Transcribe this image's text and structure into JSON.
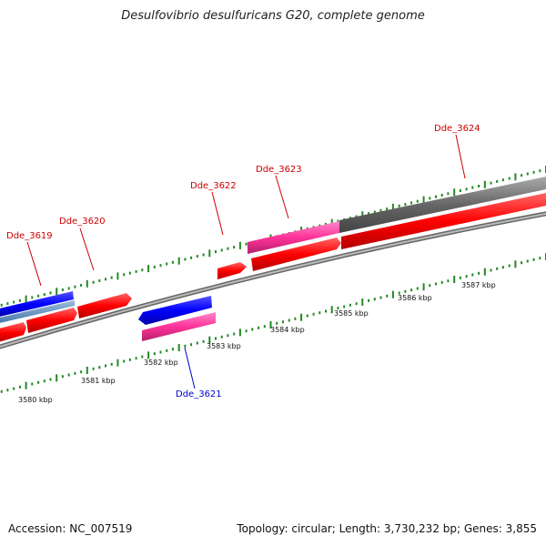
{
  "title": "Desulfovibrio desulfuricans G20, complete genome",
  "footer": {
    "accession": "Accession: NC_007519",
    "summary": "Topology: circular; Length: 3,730,232 bp; Genes: 3,855"
  },
  "colors": {
    "forward_gene": "#ff0000",
    "reverse_gene": "#0000ff",
    "rna_feature": "#ff3399",
    "pseudo_region": "#666666",
    "backbone": "#888888",
    "tick": "#228822",
    "label_red": "#cc0000",
    "label_blue": "#0000cc"
  },
  "gene_labels": [
    {
      "id": "Dde_3619",
      "color": "red"
    },
    {
      "id": "Dde_3620",
      "color": "red"
    },
    {
      "id": "Dde_3621",
      "color": "blue"
    },
    {
      "id": "Dde_3622",
      "color": "red"
    },
    {
      "id": "Dde_3623",
      "color": "red"
    },
    {
      "id": "Dde_3624",
      "color": "red"
    }
  ],
  "scale_labels": [
    "3580 kbp",
    "3581 kbp",
    "3582 kbp",
    "3583 kbp",
    "3584 kbp",
    "3585 kbp",
    "3586 kbp",
    "3587 kbp"
  ]
}
